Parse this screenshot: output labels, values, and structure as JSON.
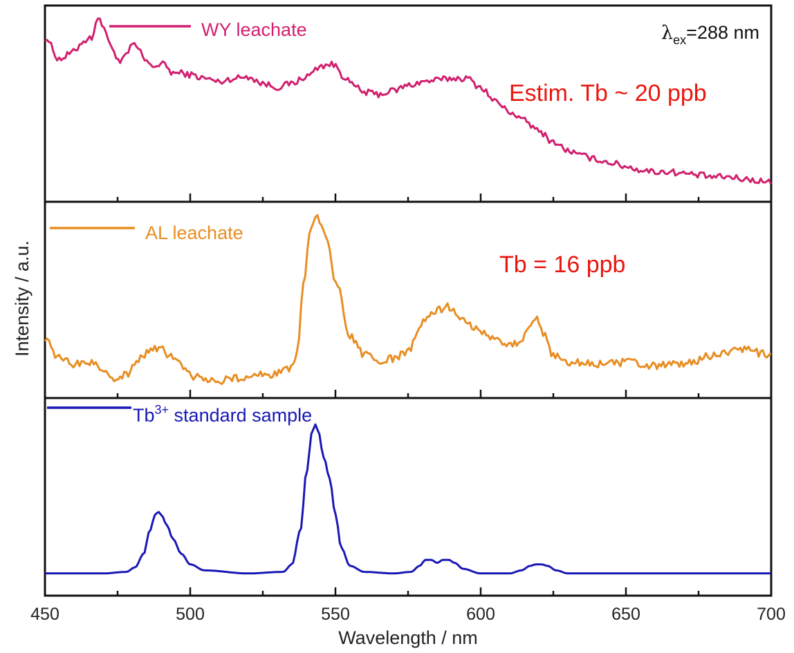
{
  "chart_data": {
    "type": "line",
    "xlabel": "Wavelength / nm",
    "ylabel": "Intensity / a.u.",
    "xlim": [
      450,
      700
    ],
    "xticks": [
      450,
      500,
      550,
      600,
      650,
      700
    ],
    "grid": false,
    "annotations": {
      "excitation_symbol": "λ",
      "excitation_subscript": "ex",
      "excitation_value": "=288 nm",
      "estimate_top": "Estim. Tb ~ 20 ppb",
      "estimate_middle": "Tb = 16 ppb",
      "estimate_color": "#e8170f"
    },
    "panels": [
      {
        "legend_prefix": "WY leachate",
        "legend_sup": "",
        "legend_suffix": "",
        "color": "#d0206e",
        "noise": 0.018,
        "x": [
          450,
          455,
          460,
          463,
          466,
          468,
          470,
          473,
          476,
          478,
          480,
          482,
          485,
          488,
          491,
          494,
          497,
          500,
          505,
          510,
          515,
          520,
          525,
          530,
          535,
          540,
          545,
          548,
          550,
          553,
          556,
          560,
          565,
          570,
          575,
          580,
          585,
          590,
          595,
          600,
          605,
          610,
          615,
          620,
          625,
          630,
          635,
          640,
          645,
          650,
          655,
          660,
          665,
          670,
          675,
          680,
          685,
          690,
          695,
          700
        ],
        "values": [
          0.86,
          0.74,
          0.78,
          0.84,
          0.86,
          0.97,
          0.93,
          0.8,
          0.72,
          0.76,
          0.82,
          0.8,
          0.72,
          0.7,
          0.71,
          0.66,
          0.66,
          0.65,
          0.63,
          0.61,
          0.63,
          0.64,
          0.6,
          0.58,
          0.6,
          0.64,
          0.7,
          0.71,
          0.7,
          0.64,
          0.59,
          0.55,
          0.54,
          0.56,
          0.59,
          0.61,
          0.62,
          0.63,
          0.63,
          0.58,
          0.5,
          0.44,
          0.39,
          0.33,
          0.27,
          0.22,
          0.19,
          0.17,
          0.15,
          0.13,
          0.11,
          0.1,
          0.1,
          0.09,
          0.08,
          0.07,
          0.07,
          0.06,
          0.05,
          0.04
        ]
      },
      {
        "legend_prefix": "AL leachate",
        "legend_sup": "",
        "legend_suffix": "",
        "color": "#e78e23",
        "noise": 0.022,
        "x": [
          450,
          455,
          460,
          463,
          466,
          470,
          475,
          478,
          482,
          487,
          490,
          494,
          498,
          502,
          506,
          510,
          515,
          520,
          525,
          530,
          535,
          537,
          539,
          541,
          543,
          545,
          547,
          550,
          555,
          560,
          565,
          570,
          575,
          580,
          585,
          588,
          590,
          593,
          596,
          600,
          605,
          610,
          613,
          616,
          619,
          622,
          625,
          630,
          640,
          650,
          660,
          670,
          680,
          690,
          700
        ],
        "values": [
          0.3,
          0.18,
          0.15,
          0.16,
          0.16,
          0.12,
          0.07,
          0.09,
          0.18,
          0.23,
          0.23,
          0.19,
          0.12,
          0.08,
          0.06,
          0.06,
          0.07,
          0.08,
          0.09,
          0.1,
          0.12,
          0.24,
          0.6,
          0.86,
          0.98,
          0.94,
          0.84,
          0.62,
          0.3,
          0.2,
          0.17,
          0.18,
          0.22,
          0.38,
          0.45,
          0.47,
          0.46,
          0.42,
          0.37,
          0.33,
          0.3,
          0.26,
          0.27,
          0.33,
          0.4,
          0.31,
          0.2,
          0.16,
          0.15,
          0.16,
          0.14,
          0.15,
          0.2,
          0.23,
          0.2
        ]
      },
      {
        "legend_prefix": "Tb",
        "legend_sup": "3+",
        "legend_suffix": " standard sample",
        "color": "#1818b5",
        "noise": 0,
        "x": [
          450,
          470,
          478,
          481,
          484,
          486,
          488,
          489,
          490,
          492,
          494,
          497,
          500,
          505,
          520,
          532,
          535,
          538,
          540,
          542,
          543,
          544,
          546,
          548,
          550,
          552,
          555,
          560,
          570,
          576,
          579,
          581,
          583,
          585,
          587,
          589,
          591,
          594,
          600,
          610,
          614,
          617,
          619,
          621,
          623,
          626,
          630,
          650,
          680,
          700
        ],
        "values": [
          0.01,
          0.01,
          0.02,
          0.05,
          0.14,
          0.29,
          0.4,
          0.42,
          0.4,
          0.33,
          0.24,
          0.14,
          0.07,
          0.03,
          0.01,
          0.02,
          0.07,
          0.3,
          0.68,
          0.95,
          1.0,
          0.96,
          0.78,
          0.64,
          0.4,
          0.18,
          0.06,
          0.02,
          0.01,
          0.02,
          0.06,
          0.1,
          0.1,
          0.08,
          0.1,
          0.1,
          0.08,
          0.04,
          0.01,
          0.01,
          0.03,
          0.06,
          0.07,
          0.07,
          0.06,
          0.03,
          0.01,
          0.01,
          0.01,
          0.01
        ]
      }
    ]
  }
}
